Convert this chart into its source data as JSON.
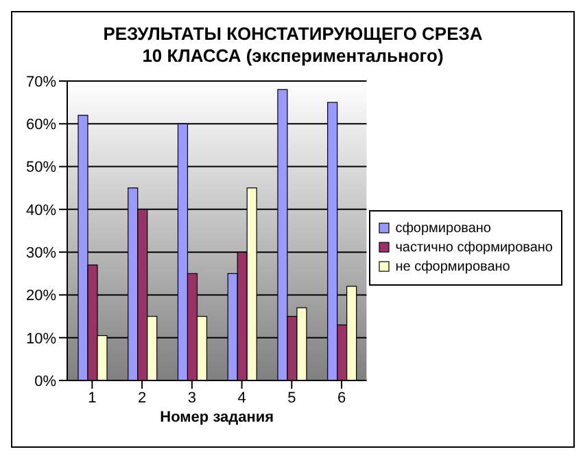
{
  "chart_data": {
    "type": "bar",
    "title": "РЕЗУЛЬТАТЫ КОНСТАТИРУЮЩЕГО СРЕЗА\n10 КЛАССА (экспериментального)",
    "xlabel": "Номер задания",
    "categories": [
      "1",
      "2",
      "3",
      "4",
      "5",
      "6"
    ],
    "series": [
      {
        "name": "сформировано",
        "color": "#9999ff",
        "values": [
          62,
          45,
          60,
          25,
          68,
          65
        ]
      },
      {
        "name": "частично сформировано",
        "color": "#993366",
        "values": [
          27,
          40,
          25,
          30,
          15,
          13
        ]
      },
      {
        "name": "не сформировано",
        "color": "#ffffcc",
        "values": [
          10.5,
          15,
          15,
          45,
          17,
          22
        ]
      }
    ],
    "ylim": [
      0,
      70
    ],
    "yticks": [
      {
        "value": 0,
        "label": "0%"
      },
      {
        "value": 10,
        "label": "10%"
      },
      {
        "value": 20,
        "label": "20%"
      },
      {
        "value": 30,
        "label": "30%"
      },
      {
        "value": 40,
        "label": "40%"
      },
      {
        "value": 50,
        "label": "50%"
      },
      {
        "value": 60,
        "label": "60%"
      },
      {
        "value": 70,
        "label": "70%"
      }
    ],
    "grid": "y",
    "legend": "right"
  }
}
